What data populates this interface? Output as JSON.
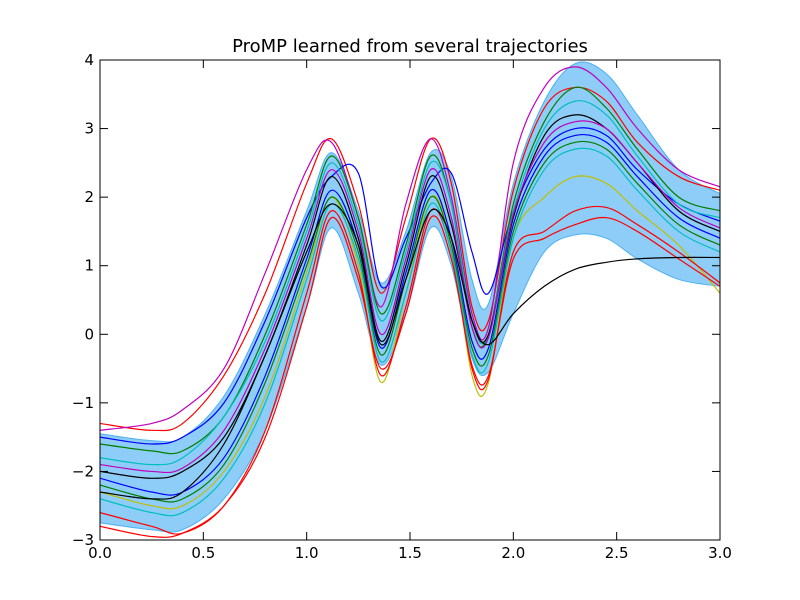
{
  "chart_data": {
    "type": "line",
    "title": "ProMP learned from several trajectories",
    "xlabel": "",
    "ylabel": "",
    "xlim": [
      0.0,
      3.0
    ],
    "ylim": [
      -3,
      4
    ],
    "xticks": [
      "0.0",
      "0.5",
      "1.0",
      "1.5",
      "2.0",
      "2.5",
      "3.0"
    ],
    "yticks": [
      "-3",
      "-2",
      "-1",
      "0",
      "1",
      "2",
      "3",
      "4"
    ],
    "grid": false,
    "legend": "none",
    "band": {
      "color": "#1e9bf0",
      "x": [
        0.0,
        0.25,
        0.4,
        0.6,
        0.8,
        1.0,
        1.12,
        1.25,
        1.36,
        1.48,
        1.6,
        1.7,
        1.8,
        1.88,
        2.0,
        2.15,
        2.3,
        2.45,
        2.6,
        2.8,
        3.0
      ],
      "upper": [
        -1.45,
        -1.55,
        -1.5,
        -0.9,
        0.3,
        1.8,
        2.65,
        1.8,
        0.75,
        1.5,
        2.65,
        2.3,
        0.8,
        0.45,
        2.2,
        3.4,
        3.95,
        3.8,
        3.2,
        2.4,
        2.05
      ],
      "lower": [
        -2.75,
        -2.85,
        -2.85,
        -2.4,
        -1.4,
        0.4,
        1.55,
        0.6,
        -0.45,
        0.3,
        1.55,
        1.0,
        -0.35,
        -0.55,
        0.3,
        1.2,
        1.45,
        1.4,
        1.1,
        0.8,
        0.7
      ]
    },
    "series": [
      {
        "color": "#ff0000",
        "values": [
          -1.3,
          -1.4,
          -1.3,
          -0.6,
          0.6,
          2.2,
          2.85,
          1.9,
          0.6,
          1.7,
          2.85,
          2.2,
          0.4,
          0.2,
          2.1,
          3.3,
          3.6,
          3.4,
          2.8,
          2.3,
          2.1
        ]
      },
      {
        "color": "#bf00bf",
        "values": [
          -1.4,
          -1.3,
          -1.1,
          -0.5,
          0.9,
          2.4,
          2.8,
          1.7,
          0.4,
          1.9,
          2.85,
          2.0,
          0.3,
          0.1,
          2.5,
          3.6,
          3.9,
          3.6,
          3.0,
          2.4,
          2.15
        ]
      },
      {
        "color": "#0000ff",
        "values": [
          -1.5,
          -1.6,
          -1.5,
          -1.0,
          0.2,
          1.7,
          2.3,
          2.35,
          0.7,
          1.4,
          2.2,
          2.35,
          1.2,
          0.6,
          1.8,
          2.7,
          3.0,
          2.9,
          2.4,
          1.9,
          1.65
        ]
      },
      {
        "color": "#007f00",
        "values": [
          -1.6,
          -1.7,
          -1.7,
          -1.2,
          0.0,
          1.6,
          2.6,
          1.7,
          0.3,
          1.3,
          2.6,
          1.9,
          0.1,
          0.0,
          1.9,
          3.1,
          3.6,
          3.3,
          2.7,
          2.0,
          1.8
        ]
      },
      {
        "color": "#00bfbf",
        "values": [
          -1.8,
          -1.9,
          -1.8,
          -1.2,
          -0.1,
          1.5,
          2.5,
          1.6,
          0.2,
          1.2,
          2.5,
          1.9,
          0.2,
          0.0,
          1.8,
          3.0,
          3.4,
          3.2,
          2.6,
          1.9,
          1.7
        ]
      },
      {
        "color": "#000000",
        "values": [
          -2.0,
          -2.1,
          -2.0,
          -1.5,
          -0.3,
          1.3,
          2.3,
          1.4,
          -0.1,
          1.0,
          2.3,
          1.6,
          0.2,
          0.0,
          1.7,
          2.9,
          3.2,
          3.0,
          2.5,
          1.8,
          1.5
        ]
      },
      {
        "color": "#bfbf00",
        "values": [
          -2.3,
          -2.5,
          -2.5,
          -2.0,
          -0.9,
          0.9,
          2.0,
          1.0,
          -0.7,
          0.6,
          2.0,
          1.3,
          -0.6,
          -0.7,
          1.4,
          2.0,
          2.3,
          2.2,
          1.8,
          1.3,
          0.6
        ]
      },
      {
        "color": "#ff0000",
        "values": [
          -2.6,
          -2.8,
          -2.9,
          -2.5,
          -1.4,
          0.6,
          1.8,
          0.9,
          -0.6,
          0.4,
          1.8,
          1.2,
          -0.5,
          -0.65,
          1.2,
          1.5,
          1.8,
          1.85,
          1.6,
          1.2,
          0.75
        ]
      },
      {
        "color": "#ff0000",
        "values": [
          -2.8,
          -2.95,
          -2.9,
          -2.5,
          -1.5,
          0.4,
          1.7,
          0.8,
          -0.5,
          0.3,
          1.7,
          1.1,
          -0.45,
          -0.6,
          1.1,
          1.4,
          1.6,
          1.7,
          1.5,
          1.1,
          0.7
        ]
      },
      {
        "color": "#0000ff",
        "values": [
          -2.1,
          -2.3,
          -2.3,
          -1.8,
          -0.6,
          1.1,
          2.1,
          1.3,
          -0.2,
          0.9,
          2.1,
          1.4,
          -0.1,
          -0.2,
          1.6,
          2.6,
          2.9,
          2.8,
          2.3,
          1.7,
          1.4
        ]
      },
      {
        "color": "#007f00",
        "values": [
          -2.2,
          -2.4,
          -2.4,
          -1.9,
          -0.7,
          1.0,
          2.0,
          1.2,
          -0.3,
          0.8,
          2.0,
          1.3,
          -0.2,
          -0.3,
          1.5,
          2.5,
          2.8,
          2.7,
          2.2,
          1.6,
          1.3
        ]
      },
      {
        "color": "#bf00bf",
        "values": [
          -1.9,
          -2.0,
          -1.95,
          -1.4,
          -0.2,
          1.4,
          2.4,
          1.5,
          0.0,
          1.1,
          2.4,
          1.7,
          0.1,
          -0.05,
          1.75,
          2.8,
          3.1,
          3.0,
          2.5,
          1.85,
          1.55
        ]
      },
      {
        "color": "#00bfbf",
        "values": [
          -2.4,
          -2.6,
          -2.6,
          -2.1,
          -1.0,
          0.8,
          1.9,
          1.1,
          -0.4,
          0.6,
          1.9,
          1.2,
          -0.3,
          -0.4,
          1.4,
          2.4,
          2.7,
          2.6,
          2.1,
          1.5,
          1.2
        ]
      },
      {
        "color": "#000000",
        "values": [
          -2.3,
          -2.4,
          -2.3,
          -1.6,
          -0.3,
          1.2,
          1.9,
          1.3,
          -0.15,
          0.8,
          1.8,
          1.4,
          0.2,
          -0.15,
          0.3,
          0.7,
          0.95,
          1.05,
          1.1,
          1.12,
          1.12
        ]
      }
    ]
  }
}
